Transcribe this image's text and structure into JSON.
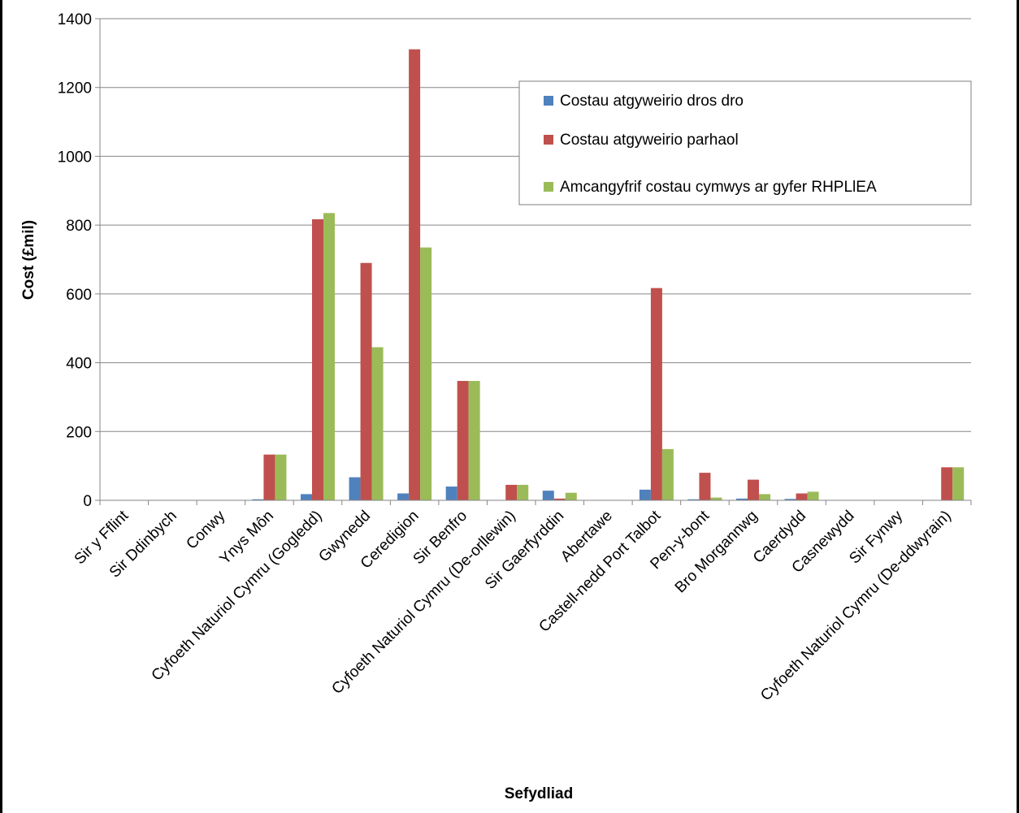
{
  "chart_data": {
    "type": "bar",
    "title": "",
    "xlabel": "Sefydliad",
    "ylabel": "Cost (£mil)",
    "ylim": [
      0,
      1400
    ],
    "yticks": [
      0,
      200,
      400,
      600,
      800,
      1000,
      1200,
      1400
    ],
    "grid": true,
    "legend_position": "top-right",
    "categories": [
      "Sir y Fflint",
      "Sir Ddinbych",
      "Conwy",
      "Ynys Môn",
      "Cyfoeth Naturiol Cymru (Gogledd)",
      "Gwynedd",
      "Ceredigion",
      "Sir Benfro",
      "Cyfoeth Naturiol Cymru (De-orllewin)",
      "Sir Gaerfyrddin",
      "Abertawe",
      "Castell-nedd Port Talbot",
      "Pen-y-bont",
      "Bro Morgannwg",
      "Caerdydd",
      "Casnewydd",
      "Sir Fynwy",
      "Cyfoeth Naturiol Cymru (De-ddwyrain)"
    ],
    "series": [
      {
        "name": "Costau atgyweirio dros dro",
        "color": "#4F81BD",
        "values": [
          0,
          0,
          0,
          3,
          18,
          67,
          20,
          40,
          0,
          28,
          0,
          31,
          3,
          5,
          4,
          0,
          0,
          0
        ]
      },
      {
        "name": "Costau atgyweirio parhaol",
        "color": "#C0504D",
        "values": [
          0,
          0,
          0,
          133,
          817,
          690,
          1311,
          347,
          45,
          5,
          0,
          617,
          80,
          60,
          20,
          0,
          0,
          96
        ]
      },
      {
        "name": "Amcangyfrif costau cymwys ar gyfer RHPLlEA",
        "color": "#9BBB59",
        "values": [
          0,
          0,
          0,
          133,
          835,
          445,
          735,
          347,
          45,
          22,
          0,
          149,
          8,
          18,
          25,
          0,
          0,
          96
        ]
      }
    ]
  }
}
